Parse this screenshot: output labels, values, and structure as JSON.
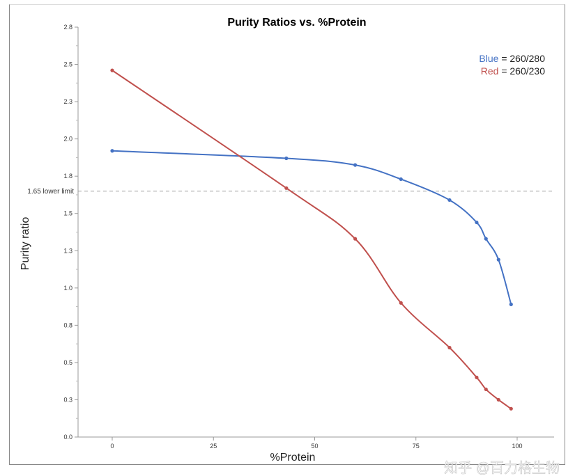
{
  "chart_data": {
    "type": "line",
    "title": "Purity Ratios vs. %Protein",
    "xlabel": "%Protein",
    "ylabel": "Purity ratio",
    "xlim": [
      -10,
      108
    ],
    "ylim": [
      0,
      2.75
    ],
    "x_ticks": [
      0,
      25,
      50,
      75,
      100
    ],
    "x_tick_labels": [
      "0",
      "25",
      "50",
      "75",
      "100"
    ],
    "y_ticks": [
      0,
      0.25,
      0.5,
      0.75,
      1.0,
      1.25,
      1.5,
      1.75,
      2.0,
      2.25,
      2.5,
      2.75
    ],
    "y_tick_labels": [
      "0.0",
      "0.3",
      "0.5",
      "0.8",
      "1.0",
      "1.3",
      "1.5",
      "1.8",
      "2.0",
      "2.3",
      "2.5",
      "2.8"
    ],
    "grid": false,
    "reference_line": {
      "y": 1.65,
      "label": "1.65 lower limit"
    },
    "legend": {
      "placement": "top-right",
      "entries": [
        {
          "color_word": "Blue",
          "text": " = 260/280",
          "color": "#4472c4"
        },
        {
          "color_word": "Red",
          "text": " = 260/230",
          "color": "#c0504d"
        }
      ]
    },
    "series": [
      {
        "name": "260/280",
        "color": "#4472c4",
        "x": [
          0,
          43,
          60,
          71.3,
          83.3,
          90,
          92.3,
          95.4,
          98.5
        ],
        "y": [
          1.92,
          1.87,
          1.825,
          1.73,
          1.59,
          1.44,
          1.33,
          1.19,
          0.89
        ]
      },
      {
        "name": "260/230",
        "color": "#c0504d",
        "x": [
          0,
          43,
          60,
          71.3,
          83.3,
          90,
          92.3,
          95.4,
          98.5
        ],
        "y": [
          2.46,
          1.67,
          1.33,
          0.9,
          0.6,
          0.4,
          0.32,
          0.25,
          0.19
        ]
      }
    ]
  },
  "watermark": "知乎 @百力格生物"
}
